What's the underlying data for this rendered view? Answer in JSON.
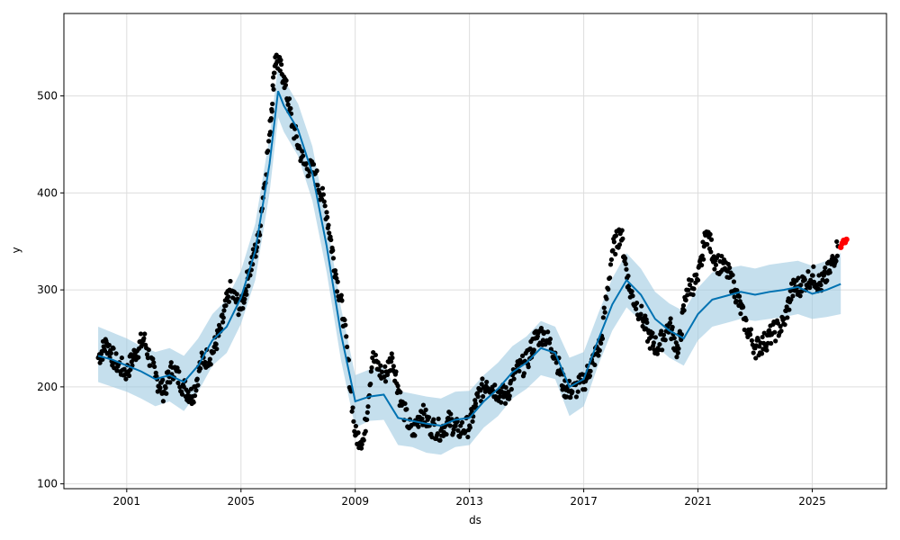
{
  "chart_data": {
    "type": "line",
    "xlabel": "ds",
    "ylabel": "y",
    "x_ticks": [
      "2001",
      "2005",
      "2009",
      "2013",
      "2017",
      "2021",
      "2025"
    ],
    "y_ticks": [
      "100",
      "200",
      "300",
      "400",
      "500"
    ],
    "xlim": [
      1998.8,
      2027.6
    ],
    "ylim": [
      95,
      585
    ],
    "grid": true,
    "colors": {
      "observed": "#000000",
      "forecast": "#0072b2",
      "interval": "#9ecae1",
      "recent": "#ff0000"
    },
    "forecast_series": {
      "name": "yhat",
      "x": [
        2000.0,
        2000.5,
        2001.0,
        2001.5,
        2002.0,
        2002.5,
        2003.0,
        2003.5,
        2004.0,
        2004.5,
        2005.0,
        2005.5,
        2006.0,
        2006.3,
        2006.5,
        2007.0,
        2007.5,
        2008.0,
        2008.5,
        2009.0,
        2009.5,
        2010.0,
        2010.5,
        2011.0,
        2011.5,
        2012.0,
        2012.5,
        2013.0,
        2013.5,
        2014.0,
        2014.5,
        2015.0,
        2015.5,
        2016.0,
        2016.5,
        2017.0,
        2017.5,
        2018.0,
        2018.5,
        2019.0,
        2019.5,
        2020.0,
        2020.5,
        2021.0,
        2021.5,
        2022.0,
        2022.5,
        2023.0,
        2023.5,
        2024.0,
        2024.5,
        2025.0,
        2025.5,
        2026.0
      ],
      "yhat": [
        232,
        228,
        222,
        216,
        208,
        212,
        205,
        222,
        248,
        262,
        292,
        340,
        430,
        505,
        490,
        465,
        420,
        345,
        255,
        185,
        190,
        192,
        168,
        165,
        162,
        160,
        166,
        168,
        185,
        198,
        215,
        225,
        240,
        235,
        200,
        208,
        248,
        285,
        310,
        295,
        270,
        258,
        250,
        275,
        290,
        294,
        298,
        295,
        298,
        300,
        303,
        296,
        300,
        306
      ],
      "lower": [
        205,
        200,
        195,
        188,
        180,
        185,
        175,
        195,
        222,
        235,
        265,
        310,
        400,
        478,
        463,
        438,
        392,
        318,
        228,
        158,
        165,
        166,
        140,
        138,
        132,
        130,
        138,
        140,
        158,
        170,
        188,
        198,
        212,
        208,
        170,
        180,
        222,
        258,
        282,
        268,
        243,
        230,
        222,
        248,
        262,
        266,
        270,
        268,
        270,
        272,
        275,
        270,
        272,
        275
      ],
      "upper": [
        262,
        256,
        250,
        242,
        236,
        240,
        232,
        250,
        275,
        290,
        320,
        368,
        458,
        532,
        517,
        492,
        448,
        372,
        282,
        212,
        218,
        220,
        196,
        193,
        190,
        188,
        195,
        196,
        212,
        225,
        242,
        252,
        268,
        262,
        230,
        236,
        275,
        312,
        338,
        322,
        298,
        286,
        278,
        302,
        318,
        322,
        325,
        322,
        326,
        328,
        330,
        325,
        330,
        338
      ]
    },
    "observed_series": {
      "name": "y",
      "x": [
        2000.0,
        2000.3,
        2000.6,
        2001.0,
        2001.3,
        2001.6,
        2002.0,
        2002.3,
        2002.6,
        2003.0,
        2003.3,
        2003.6,
        2004.0,
        2004.3,
        2004.6,
        2005.0,
        2005.3,
        2005.6,
        2006.0,
        2006.2,
        2006.5,
        2006.8,
        2007.2,
        2007.6,
        2008.0,
        2008.3,
        2008.6,
        2009.0,
        2009.3,
        2009.6,
        2010.0,
        2010.3,
        2010.6,
        2011.0,
        2011.3,
        2011.6,
        2012.0,
        2012.3,
        2012.6,
        2013.0,
        2013.3,
        2013.6,
        2014.0,
        2014.3,
        2014.6,
        2015.0,
        2015.3,
        2015.6,
        2016.0,
        2016.3,
        2016.6,
        2017.0,
        2017.3,
        2017.6,
        2018.0,
        2018.3,
        2018.6,
        2019.0,
        2019.3,
        2019.6,
        2020.0,
        2020.3,
        2020.6,
        2021.0,
        2021.3,
        2021.6,
        2022.0,
        2022.3,
        2022.6,
        2023.0,
        2023.3,
        2023.6,
        2024.0,
        2024.3,
        2024.6,
        2025.0,
        2025.3,
        2025.6,
        2025.9
      ],
      "y": [
        230,
        245,
        225,
        215,
        235,
        250,
        210,
        195,
        220,
        200,
        190,
        225,
        235,
        260,
        300,
        280,
        320,
        350,
        460,
        540,
        520,
        470,
        430,
        420,
        380,
        320,
        270,
        150,
        145,
        230,
        210,
        230,
        185,
        150,
        175,
        160,
        155,
        165,
        155,
        160,
        190,
        205,
        195,
        190,
        215,
        225,
        250,
        255,
        235,
        200,
        195,
        205,
        225,
        245,
        340,
        360,
        300,
        275,
        250,
        240,
        265,
        235,
        300,
        310,
        360,
        330,
        320,
        300,
        270,
        240,
        245,
        255,
        265,
        300,
        305,
        315,
        305,
        320,
        345
      ]
    },
    "recent_series": {
      "name": "recent",
      "x": [
        2026.0,
        2026.05,
        2026.1,
        2026.15,
        2026.2
      ],
      "y": [
        344,
        348,
        351,
        349,
        352
      ]
    }
  }
}
